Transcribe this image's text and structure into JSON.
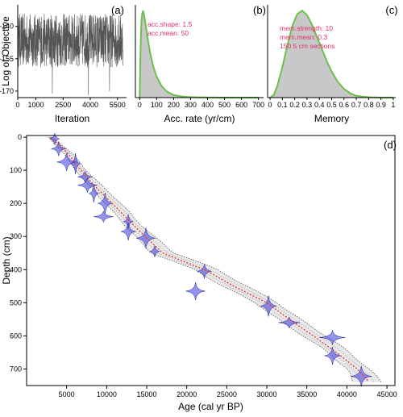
{
  "colors": {
    "trace": "#555555",
    "prior_fill": "#c8c8c8",
    "prior_line": "#6dbf4b",
    "annotation": "#e0306a",
    "model_red": "#e03030",
    "date_blue": "#3a3ae0"
  },
  "chart_data": [
    {
      "type": "line",
      "panel_label": "(a)",
      "xlabel": "Iteration",
      "ylabel": "Log of Objective",
      "xlim": [
        0,
        6000
      ],
      "ylim": [
        -173,
        -130
      ],
      "x_ticks": [
        "0",
        "1000",
        "2500",
        "4000",
        "5500"
      ],
      "x_tick_values": [
        0,
        1000,
        2500,
        4000,
        5500
      ],
      "y_ticks": [
        "-140",
        "-155",
        "-170"
      ],
      "y_tick_values": [
        -140,
        -155,
        -170
      ],
      "series": [
        {
          "x_range": [
            0,
            5800
          ],
          "center": -148,
          "spread_low": -159,
          "spread_high": -134,
          "min_spike": -172
        }
      ]
    },
    {
      "type": "area",
      "panel_label": "(b)",
      "xlabel": "Acc. rate (yr/cm)",
      "xlim": [
        -25,
        730
      ],
      "x_ticks": [
        "0",
        "100",
        "200",
        "300",
        "400",
        "500",
        "600",
        "700"
      ],
      "x_tick_values": [
        0,
        100,
        200,
        300,
        400,
        500,
        600,
        700
      ],
      "annotations": [
        "acc.shape:  1.5",
        "acc.mean:  50"
      ],
      "series": [
        {
          "x": [
            0,
            5,
            10,
            15,
            20,
            25,
            30,
            40,
            50,
            60,
            80,
            100,
            130,
            160,
            200,
            250,
            300,
            400,
            500,
            700
          ],
          "y": [
            0,
            0.55,
            0.85,
            0.98,
            1.0,
            0.96,
            0.9,
            0.78,
            0.65,
            0.53,
            0.36,
            0.24,
            0.13,
            0.07,
            0.03,
            0.012,
            0.005,
            0.001,
            0.0,
            0.0
          ]
        }
      ]
    },
    {
      "type": "area",
      "panel_label": "(c)",
      "xlabel": "Memory",
      "xlim": [
        -0.02,
        1.02
      ],
      "x_ticks": [
        "0",
        "0.1",
        "0.2",
        "0.3",
        "0.4",
        "0.5",
        "0.6",
        "0.7",
        "0.8",
        "0.9",
        "1"
      ],
      "x_tick_values": [
        0,
        0.1,
        0.2,
        0.3,
        0.4,
        0.5,
        0.6,
        0.7,
        0.8,
        0.9,
        1.0
      ],
      "annotations": [
        "mem.strength:  10",
        "mem.mean:  0.3",
        "150  5 cm sections"
      ],
      "series": [
        {
          "x": [
            0,
            0.03,
            0.06,
            0.1,
            0.14,
            0.18,
            0.22,
            0.26,
            0.3,
            0.34,
            0.38,
            0.42,
            0.46,
            0.5,
            0.55,
            0.6,
            0.65,
            0.7,
            0.8,
            0.9,
            1.0
          ],
          "y": [
            0,
            0.03,
            0.14,
            0.35,
            0.6,
            0.82,
            0.96,
            1.0,
            0.95,
            0.84,
            0.7,
            0.56,
            0.42,
            0.3,
            0.18,
            0.1,
            0.05,
            0.02,
            0.004,
            0.0,
            0.0
          ]
        }
      ]
    },
    {
      "type": "scatter",
      "panel_label": "(d)",
      "xlabel": "Age (cal yr BP)",
      "ylabel": "Depth (cm)",
      "xlim": [
        0,
        46000
      ],
      "ylim": [
        750,
        -5
      ],
      "x_ticks": [
        "5000",
        "10000",
        "15000",
        "20000",
        "25000",
        "30000",
        "35000",
        "40000",
        "45000"
      ],
      "x_tick_values": [
        5000,
        10000,
        15000,
        20000,
        25000,
        30000,
        35000,
        40000,
        45000
      ],
      "y_ticks": [
        "0",
        "100",
        "200",
        "300",
        "400",
        "500",
        "600",
        "700"
      ],
      "y_tick_values": [
        0,
        100,
        200,
        300,
        400,
        500,
        600,
        700
      ],
      "model_median": {
        "depth": [
          0,
          50,
          100,
          150,
          200,
          250,
          300,
          350,
          400,
          450,
          500,
          550,
          600,
          650,
          700,
          740
        ],
        "age": [
          3000,
          5200,
          6800,
          8600,
          10700,
          12700,
          14800,
          17000,
          22200,
          25900,
          30000,
          32800,
          35800,
          38700,
          41300,
          42800
        ]
      },
      "model_range": {
        "depth": [
          0,
          50,
          100,
          150,
          200,
          250,
          300,
          350,
          400,
          450,
          500,
          550,
          600,
          650,
          700,
          740
        ],
        "min_age": [
          2700,
          4600,
          6100,
          7700,
          9600,
          11600,
          13500,
          15400,
          20600,
          24200,
          28500,
          31300,
          34300,
          37300,
          39800,
          40600
        ],
        "max_age": [
          3300,
          5900,
          7600,
          9600,
          11900,
          13900,
          16200,
          18800,
          23900,
          27700,
          31700,
          34500,
          37600,
          40400,
          43000,
          44800
        ]
      },
      "dates": {
        "age": [
          3500,
          4000,
          5000,
          6100,
          7300,
          7600,
          8400,
          9800,
          9600,
          12700,
          12700,
          14900,
          16000,
          22200,
          21100,
          30200,
          32800,
          38200,
          38200,
          41800
        ],
        "depth": [
          5,
          35,
          75,
          80,
          120,
          145,
          170,
          200,
          240,
          255,
          285,
          305,
          345,
          405,
          465,
          510,
          560,
          605,
          660,
          722
        ]
      }
    }
  ]
}
